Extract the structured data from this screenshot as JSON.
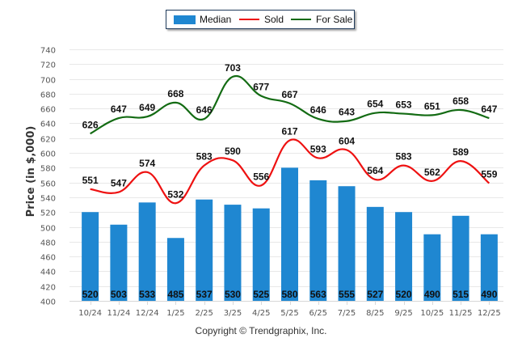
{
  "chart_data": {
    "type": "bar",
    "title": "",
    "xlabel": "",
    "ylabel": "Price (in $,000)",
    "ylim": [
      400,
      740
    ],
    "ytick_step": 20,
    "grid": true,
    "legend_position": "top-center",
    "categories": [
      "10/24",
      "11/24",
      "12/24",
      "1/25",
      "2/25",
      "3/25",
      "4/25",
      "5/25",
      "6/25",
      "7/25",
      "8/25",
      "9/25",
      "10/25",
      "11/25",
      "12/25"
    ],
    "series": [
      {
        "name": "Median",
        "type": "bar",
        "color": "#1f87d1",
        "values": [
          520,
          503,
          533,
          485,
          537,
          530,
          525,
          580,
          563,
          555,
          527,
          520,
          490,
          515,
          490
        ]
      },
      {
        "name": "Sold",
        "type": "line",
        "color": "#ee1111",
        "values": [
          551,
          547,
          574,
          532,
          583,
          590,
          556,
          617,
          593,
          604,
          564,
          583,
          562,
          589,
          559
        ]
      },
      {
        "name": "For Sale",
        "type": "line",
        "color": "#136b13",
        "values": [
          626,
          647,
          649,
          668,
          646,
          703,
          677,
          667,
          646,
          643,
          654,
          653,
          651,
          658,
          647
        ]
      }
    ]
  },
  "legend": {
    "items": [
      {
        "label": "Median",
        "color": "#1f87d1"
      },
      {
        "label": "Sold",
        "color": "#ee1111"
      },
      {
        "label": "For Sale",
        "color": "#136b13"
      }
    ]
  },
  "footer": {
    "copyright": "Copyright © Trendgraphix, Inc."
  }
}
